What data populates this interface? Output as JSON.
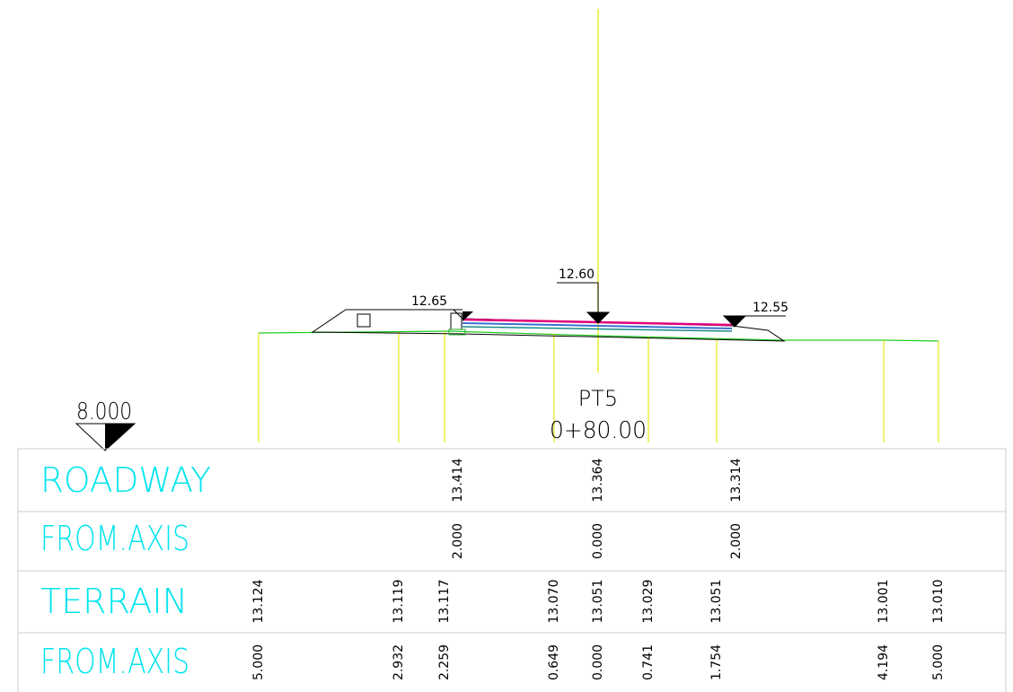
{
  "datum": "8.000",
  "station": {
    "name": "PT5",
    "chainage": "0+80.00"
  },
  "elevations": [
    "12.65",
    "12.60",
    "12.55"
  ],
  "table": {
    "rows": [
      {
        "label": "ROADWAY",
        "values": [
          "13.414",
          "13.364",
          "13.314"
        ]
      },
      {
        "label": "FROM.AXIS",
        "values": [
          "2.000",
          "0.000",
          "2.000"
        ]
      },
      {
        "label": "TERRAIN",
        "values": [
          "13.124",
          "13.119",
          "13.117",
          "13.070",
          "13.051",
          "13.029",
          "13.051",
          "13.001",
          "13.010"
        ]
      },
      {
        "label": "FROM.AXIS",
        "values": [
          "5.000",
          "2.932",
          "2.259",
          "0.649",
          "0.000",
          "0.741",
          "1.754",
          "4.194",
          "5.000"
        ]
      }
    ]
  }
}
